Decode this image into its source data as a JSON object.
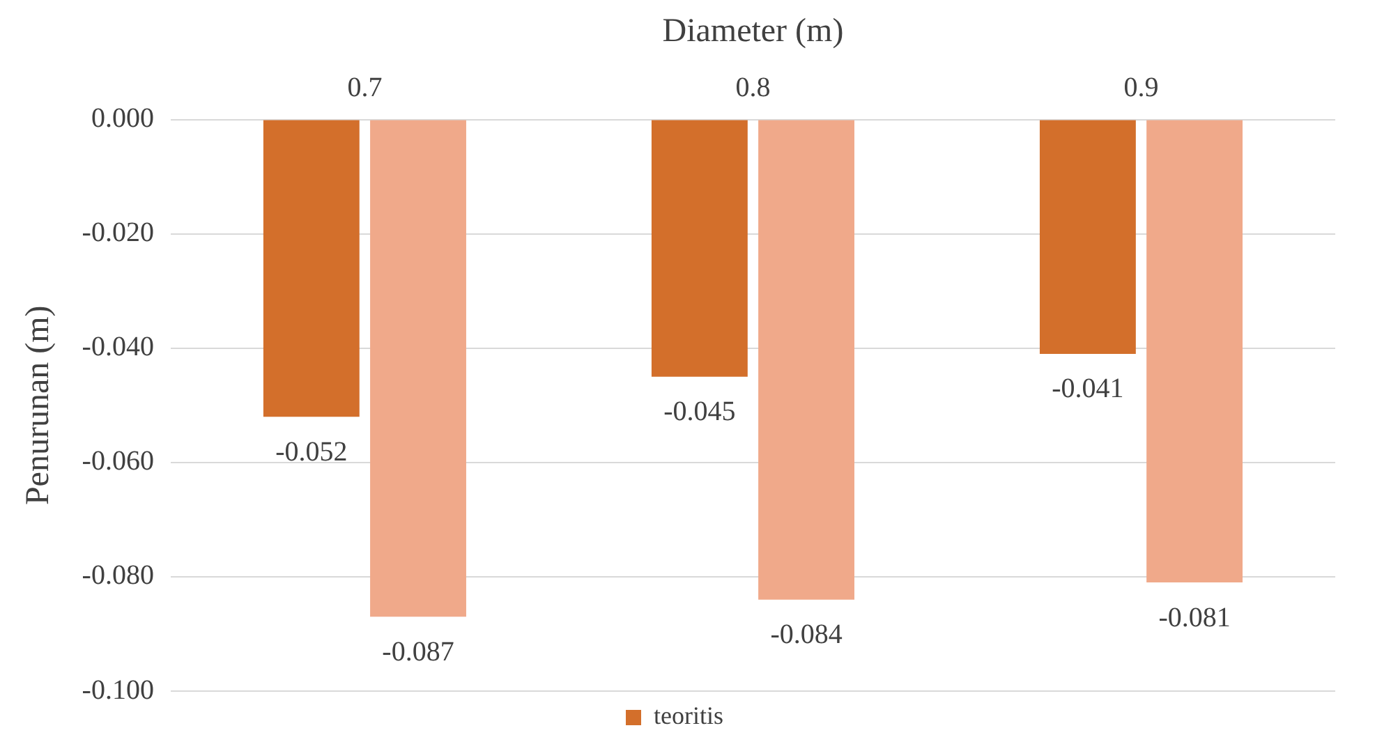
{
  "chart_data": {
    "type": "bar",
    "xlabel": "Diameter (m)",
    "ylabel": "Penurunan (m)",
    "categories": [
      "0.7",
      "0.8",
      "0.9"
    ],
    "series": [
      {
        "name": "teoritis",
        "color": "#d36f2b",
        "values": [
          -0.052,
          -0.045,
          -0.041
        ]
      },
      {
        "color": "#f0a98a",
        "values": [
          -0.087,
          -0.084,
          -0.081
        ]
      }
    ],
    "ylim": [
      -0.1,
      0
    ],
    "yticks": [
      {
        "value": 0,
        "label": "0.000"
      },
      {
        "value": -0.02,
        "label": "-0.020"
      },
      {
        "value": -0.04,
        "label": "-0.040"
      },
      {
        "value": -0.06,
        "label": "-0.060"
      },
      {
        "value": -0.08,
        "label": "-0.080"
      },
      {
        "value": -0.1,
        "label": "-0.100"
      }
    ],
    "grid": "y",
    "legend": "bottom",
    "data_labels": true
  }
}
